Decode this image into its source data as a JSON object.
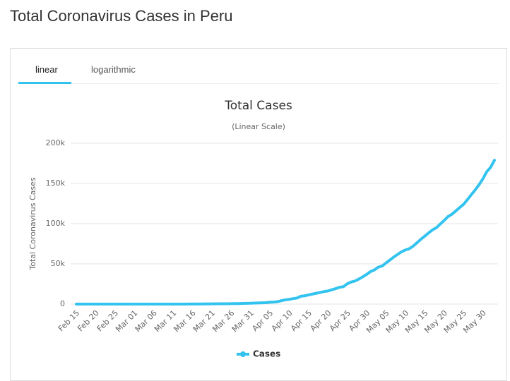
{
  "page_title": "Total Coronavirus Cases in Peru",
  "tabs": [
    "linear",
    "logarithmic"
  ],
  "chart_data": {
    "type": "line",
    "title": "Total Cases",
    "subtitle": "(Linear Scale)",
    "y_label": "Total Coronavirus Cases",
    "categories": [
      "Feb 15",
      null,
      null,
      null,
      null,
      "Feb 20",
      null,
      null,
      null,
      null,
      "Feb 25",
      null,
      null,
      null,
      null,
      "Mar 01",
      null,
      null,
      null,
      null,
      "Mar 06",
      null,
      null,
      null,
      null,
      "Mar 11",
      null,
      null,
      null,
      null,
      "Mar 16",
      null,
      null,
      null,
      null,
      "Mar 21",
      null,
      null,
      null,
      null,
      "Mar 26",
      null,
      null,
      null,
      null,
      "Mar 31",
      null,
      null,
      null,
      null,
      "Apr 05",
      null,
      null,
      null,
      null,
      "Apr 10",
      null,
      null,
      null,
      null,
      "Apr 15",
      null,
      null,
      null,
      null,
      "Apr 20",
      null,
      null,
      null,
      null,
      "Apr 25",
      null,
      null,
      null,
      null,
      "Apr 30",
      null,
      null,
      null,
      null,
      "May 05",
      null,
      null,
      null,
      null,
      "May 10",
      null,
      null,
      null,
      null,
      "May 15",
      null,
      null,
      null,
      null,
      "May 20",
      null,
      null,
      null,
      null,
      "May 25",
      null,
      null,
      null,
      null,
      "May 30",
      null,
      null,
      null
    ],
    "series": [
      {
        "name": "Cases",
        "color": "#33c3ef",
        "values": [
          0,
          0,
          0,
          0,
          0,
          0,
          0,
          0,
          0,
          0,
          0,
          0,
          0,
          0,
          0,
          0,
          0,
          0,
          0,
          0,
          1,
          6,
          7,
          9,
          11,
          17,
          22,
          38,
          43,
          71,
          86,
          117,
          145,
          234,
          263,
          318,
          363,
          395,
          416,
          480,
          580,
          635,
          671,
          852,
          950,
          1065,
          1323,
          1414,
          1595,
          1746,
          2281,
          2561,
          2954,
          4342,
          5256,
          5897,
          6848,
          7519,
          9784,
          10303,
          11475,
          12491,
          13489,
          14420,
          15628,
          16325,
          17837,
          19250,
          20914,
          21648,
          25331,
          27517,
          28699,
          31190,
          33931,
          36976,
          40459,
          42534,
          45928,
          47372,
          51189,
          54817,
          58526,
          61847,
          65015,
          67307,
          68822,
          72059,
          76306,
          80604,
          84495,
          88541,
          92273,
          94933,
          99483,
          104020,
          108769,
          111698,
          115754,
          119959,
          123979,
          129751,
          135905,
          141779,
          148285,
          155671,
          164476,
          170039,
          178914
        ]
      }
    ],
    "ylim": [
      0,
      200000
    ],
    "yticks": [
      0,
      {
        "value": 50000,
        "label": "50k"
      },
      {
        "value": 100000,
        "label": "100k"
      },
      {
        "value": 150000,
        "label": "150k"
      },
      {
        "value": 200000,
        "label": "200k"
      }
    ],
    "grid": true
  }
}
